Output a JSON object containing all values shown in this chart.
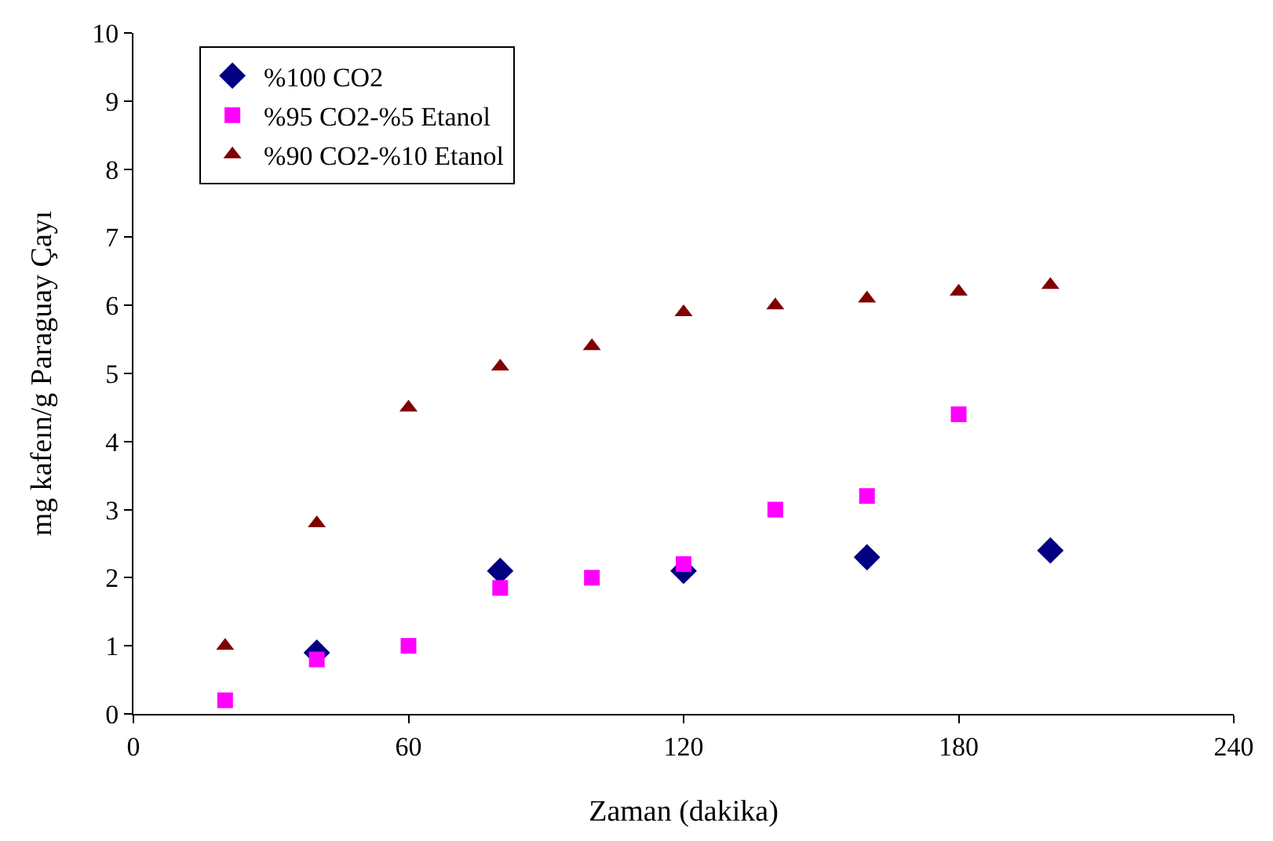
{
  "chart_data": {
    "type": "scatter",
    "xlabel": "Zaman (dakika)",
    "ylabel": "mg kafeın/g Paraguay Çayı",
    "xlim": [
      0,
      240
    ],
    "xticks": [
      0,
      60,
      120,
      180,
      240
    ],
    "ylim": [
      0,
      10
    ],
    "yticks": [
      0,
      1,
      2,
      3,
      4,
      5,
      6,
      7,
      8,
      9,
      10
    ],
    "grid": false,
    "legend": "top left",
    "series": [
      {
        "name": "%100 CO2",
        "color": "#000080",
        "marker": "diamond",
        "x": [
          40,
          80,
          120,
          160,
          200
        ],
        "values": [
          0.9,
          2.1,
          2.1,
          2.3,
          2.4
        ]
      },
      {
        "name": "%95 CO2-%5 Etanol",
        "color": "#ff00ff",
        "marker": "square",
        "x": [
          20,
          40,
          60,
          80,
          100,
          120,
          140,
          160,
          180
        ],
        "values": [
          0.2,
          0.8,
          1.0,
          1.85,
          2.0,
          2.2,
          3.0,
          3.2,
          4.4
        ]
      },
      {
        "name": "%90 CO2-%10 Etanol",
        "color": "#800000",
        "marker": "triangle",
        "x": [
          20,
          40,
          60,
          80,
          100,
          120,
          140,
          160,
          180,
          200
        ],
        "values": [
          1.0,
          2.8,
          4.5,
          5.1,
          5.4,
          5.9,
          6.0,
          6.1,
          6.2,
          6.3
        ]
      }
    ]
  }
}
